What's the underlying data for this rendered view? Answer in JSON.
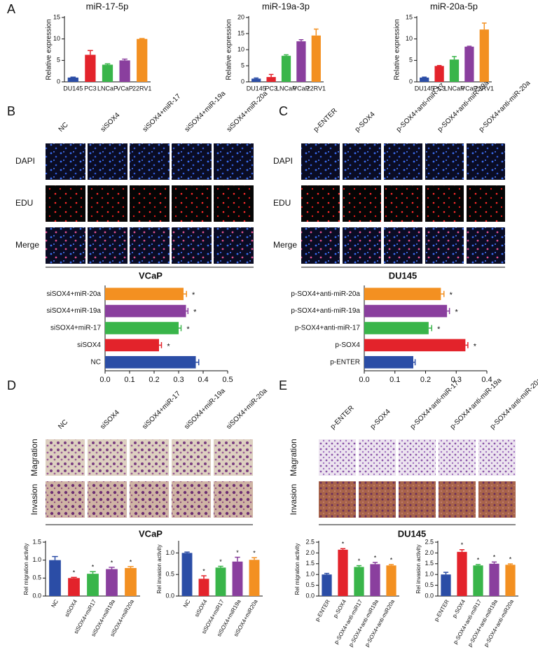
{
  "panel_labels": [
    "A",
    "B",
    "C",
    "D",
    "E"
  ],
  "image_grids": [
    {
      "columns": [
        "NC",
        "siSOX4",
        "siSOX4+miR-17",
        "siSOX4+miR-19a",
        "siSOX4+miR-20a"
      ],
      "rows": [
        "DAPI",
        "EDU",
        "Merge"
      ]
    },
    {
      "columns": [
        "p-ENTER",
        "p-SOX4",
        "p-SOX4+anti-miR-17",
        "p-SOX4+anti-miR-19a",
        "p-SOX4+anti-miR-20a"
      ],
      "rows": [
        "DAPI",
        "EDU",
        "Merge"
      ]
    },
    {
      "columns": [
        "NC",
        "siSOX4",
        "siSOX4+miR-17",
        "siSOX4+miR-19a",
        "siSOX4+miR-20a"
      ],
      "rows": [
        "Magration",
        "Invasion"
      ]
    },
    {
      "columns": [
        "p-ENTER",
        "p-SOX4",
        "p-SOX4+anti-miR-17",
        "p-SOX4+anti-miR-19a",
        "p-SOX4+anti-miR-20a"
      ],
      "rows": [
        "Magration",
        "Invasion"
      ]
    }
  ],
  "chart_data": [
    {
      "type": "bar",
      "title": "miR-17-5p",
      "y_label": "Relative expression",
      "categories": [
        "DU145",
        "PC3",
        "LNCaP",
        "VCaP",
        "22RV1"
      ],
      "values": [
        1.0,
        6.3,
        4.0,
        5.0,
        10.0
      ],
      "errors": [
        0.1,
        1.0,
        0.2,
        0.3,
        0.1
      ],
      "colors": [
        "#2b4da6",
        "#e3232b",
        "#39b54a",
        "#8a3f9e",
        "#f39021"
      ],
      "ylim": [
        0,
        15
      ],
      "yticks": [
        0,
        5,
        10,
        15
      ]
    },
    {
      "type": "bar",
      "title": "miR-19a-3p",
      "y_label": "Relative expression",
      "categories": [
        "DU145",
        "PC3",
        "LNCaP",
        "VCaP",
        "22RV1"
      ],
      "values": [
        1.0,
        1.5,
        8.1,
        12.6,
        14.4
      ],
      "errors": [
        0.2,
        0.8,
        0.3,
        0.5,
        2.0
      ],
      "colors": [
        "#2b4da6",
        "#e3232b",
        "#39b54a",
        "#8a3f9e",
        "#f39021"
      ],
      "ylim": [
        0,
        20
      ],
      "yticks": [
        0,
        5,
        10,
        15,
        20
      ]
    },
    {
      "type": "bar",
      "title": "miR-20a-5p",
      "y_label": "Relative expression",
      "categories": [
        "DU145",
        "PC3",
        "LNCaP",
        "VCaP",
        "22RV1"
      ],
      "values": [
        1.0,
        3.7,
        5.2,
        8.2,
        12.2
      ],
      "errors": [
        0.1,
        0.1,
        0.7,
        0.1,
        1.5
      ],
      "colors": [
        "#2b4da6",
        "#e3232b",
        "#39b54a",
        "#8a3f9e",
        "#f39021"
      ],
      "ylim": [
        0,
        15
      ],
      "yticks": [
        0,
        5,
        10,
        15
      ]
    },
    {
      "type": "bar",
      "orientation": "horizontal",
      "title": "VCaP",
      "categories": [
        "siSOX4+miR-20a",
        "siSOX4+miR-19a",
        "siSOX4+miR-17",
        "siSOX4",
        "NC"
      ],
      "values": [
        0.32,
        0.33,
        0.3,
        0.22,
        0.37
      ],
      "errors": [
        0.012,
        0.008,
        0.01,
        0.01,
        0.012
      ],
      "annotations": [
        "*",
        "*",
        "*",
        "*",
        null
      ],
      "colors": [
        "#f39021",
        "#8a3f9e",
        "#39b54a",
        "#e3232b",
        "#2b4da6"
      ],
      "xlim": [
        0,
        0.5
      ],
      "xticks": [
        {
          "value": 0,
          "label": "0.0"
        },
        0.1,
        0.2,
        0.3,
        0.4,
        0.5
      ]
    },
    {
      "type": "bar",
      "orientation": "horizontal",
      "title": "DU145",
      "categories": [
        "p-SOX4+anti-miR-20a",
        "p-SOX4+anti-miR-19a",
        "p-SOX4+anti-miR-17",
        "p-SOX4",
        "p-ENTER"
      ],
      "values": [
        0.25,
        0.27,
        0.21,
        0.33,
        0.16
      ],
      "errors": [
        0.01,
        0.008,
        0.01,
        0.008,
        0.006
      ],
      "annotations": [
        "*",
        "*",
        "*",
        "*",
        null
      ],
      "colors": [
        "#f39021",
        "#8a3f9e",
        "#39b54a",
        "#e3232b",
        "#2b4da6"
      ],
      "xlim": [
        0,
        0.4
      ],
      "xticks": [
        {
          "value": 0,
          "label": "0.0"
        },
        0.1,
        0.2,
        0.3,
        0.4
      ]
    },
    {
      "type": "bar",
      "title": "VCaP",
      "y_label": "Rel migration activity",
      "categories": [
        "NC",
        "siSOX4",
        "siSOX4+miR17",
        "siSOX4+miR19a",
        "siSOX4+miR20a"
      ],
      "values": [
        1.0,
        0.5,
        0.62,
        0.75,
        0.78
      ],
      "errors": [
        0.1,
        0.02,
        0.06,
        0.05,
        0.04
      ],
      "annotations": [
        null,
        "*",
        "*",
        "*",
        "*"
      ],
      "colors": [
        "#2b4da6",
        "#e3232b",
        "#39b54a",
        "#8a3f9e",
        "#f39021"
      ],
      "ylim": [
        0,
        1.5
      ],
      "yticks": [
        {
          "value": 0,
          "label": "0.0"
        },
        0.5,
        {
          "value": 1,
          "label": "1.0"
        },
        1.5
      ]
    },
    {
      "type": "bar",
      "y_label": "Rel invasion activity",
      "categories": [
        "NC",
        "siSOX4",
        "siSOX4+miR17",
        "siSOX4+miR19a",
        "siSOX4+miR20a"
      ],
      "values": [
        1.0,
        0.4,
        0.66,
        0.8,
        0.84
      ],
      "errors": [
        0.02,
        0.07,
        0.03,
        0.1,
        0.05
      ],
      "annotations": [
        null,
        "*",
        "*",
        "*",
        "*"
      ],
      "colors": [
        "#2b4da6",
        "#e3232b",
        "#39b54a",
        "#8a3f9e",
        "#f39021"
      ],
      "ylim": [
        0,
        1.25
      ],
      "yticks": [
        {
          "value": 0,
          "label": "0.0"
        },
        0.5,
        {
          "value": 1,
          "label": "1.0"
        }
      ]
    },
    {
      "type": "bar",
      "title": "DU145",
      "y_label": "Rel migration activity",
      "categories": [
        "p-ENTER",
        "p-SOX4",
        "p-SOX4+anti-miR17",
        "p-SOX4+anti-miR19a",
        "p-SOX4+anti-miR20a"
      ],
      "values": [
        1.0,
        2.15,
        1.35,
        1.48,
        1.42
      ],
      "errors": [
        0.05,
        0.05,
        0.06,
        0.08,
        0.04
      ],
      "annotations": [
        null,
        "*",
        "*",
        "*",
        "*"
      ],
      "colors": [
        "#2b4da6",
        "#e3232b",
        "#39b54a",
        "#8a3f9e",
        "#f39021"
      ],
      "ylim": [
        0,
        2.5
      ],
      "yticks": [
        {
          "value": 0,
          "label": "0.0"
        },
        0.5,
        {
          "value": 1,
          "label": "1.0"
        },
        1.5,
        {
          "value": 2,
          "label": "2.0"
        },
        2.5
      ]
    },
    {
      "type": "bar",
      "y_label": "Rel invasion activity",
      "categories": [
        "p-ENTER",
        "p-SOX4",
        "p-SOX4+anti-miR17",
        "p-SOX4+anti-miR19a",
        "p-SOX4+anti-miR20a"
      ],
      "values": [
        1.0,
        2.05,
        1.42,
        1.5,
        1.45
      ],
      "errors": [
        0.1,
        0.1,
        0.04,
        0.08,
        0.04
      ],
      "annotations": [
        null,
        "*",
        "*",
        "*",
        "*"
      ],
      "colors": [
        "#2b4da6",
        "#e3232b",
        "#39b54a",
        "#8a3f9e",
        "#f39021"
      ],
      "ylim": [
        0,
        2.5
      ],
      "yticks": [
        {
          "value": 0,
          "label": "0.0"
        },
        0.5,
        {
          "value": 1,
          "label": "1.0"
        },
        1.5,
        {
          "value": 2,
          "label": "2.0"
        },
        2.5
      ]
    }
  ]
}
